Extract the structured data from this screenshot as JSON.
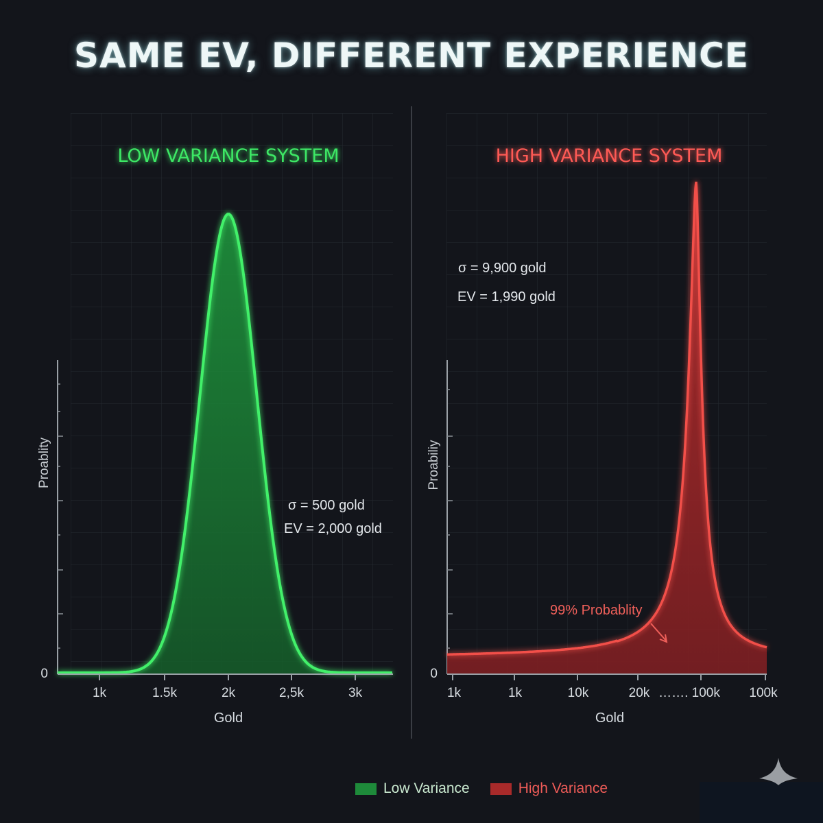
{
  "title": "SAME EV, DIFFERENT EXPERIENCE",
  "legend": {
    "items": [
      {
        "label": "Low Variance",
        "color": "#1e8a3a"
      },
      {
        "label": "High Variance",
        "color": "#a82a2a"
      }
    ]
  },
  "chart_data": [
    {
      "type": "area",
      "title": "LOW VARIANCE SYSTEM",
      "title_color": "#3ee865",
      "xlabel": "Gold",
      "ylabel": "Proablity",
      "x_ticks": [
        "1k",
        "1.5k",
        "2k",
        "2,5k",
        "3k"
      ],
      "x_tick_values": [
        1000,
        1500,
        2000,
        2500,
        3000
      ],
      "y_ticks": [
        "0"
      ],
      "xlim": [
        670,
        3300
      ],
      "distribution": "normal",
      "mean": 2000,
      "sigma_visual": 220,
      "peak_relative": 1.0,
      "annotations": [
        "σ = 500 gold",
        "EV = 2,000 gold"
      ],
      "series": [
        {
          "name": "Low Variance",
          "color": "#3ee865"
        }
      ],
      "grid": true
    },
    {
      "type": "area",
      "title": "HIGH VARIANCE SYSTEM",
      "title_color": "#ff5a55",
      "xlabel": "Gold",
      "ylabel": "Proabiliy",
      "x_ticks": [
        "1k",
        "1k",
        "10k",
        "20k",
        "……. 100k",
        "100k"
      ],
      "y_ticks": [
        "0"
      ],
      "distribution": "sharp spike with flat baseline",
      "baseline_relative": 0.035,
      "spike_position_label": "~100k (between 20k and 100k)",
      "peak_relative": 1.0,
      "annotations": [
        "σ = 9,900 gold",
        "EV = 1,990 gold",
        "99% Probablity"
      ],
      "series": [
        {
          "name": "High Variance",
          "color": "#f04a45"
        }
      ],
      "grid": true
    }
  ]
}
